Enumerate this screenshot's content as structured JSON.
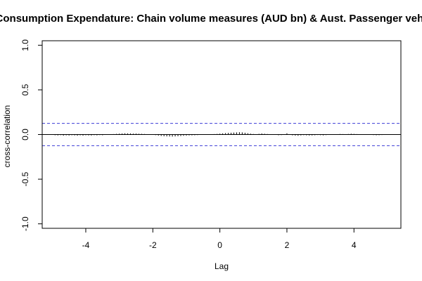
{
  "chart_data": {
    "type": "bar",
    "title": "l Consumption Expendature: Chain volume measures (AUD bn) & Aust. Passenger vehic",
    "xlabel": "Lag",
    "ylabel": "cross-correlation",
    "xlim": [
      -5.3,
      5.4
    ],
    "ylim": [
      -1.05,
      1.05
    ],
    "x_ticks": [
      -4,
      -2,
      0,
      2,
      4
    ],
    "x_tick_labels": [
      "-4",
      "-2",
      "0",
      "2",
      "4"
    ],
    "y_ticks": [
      -1.0,
      -0.5,
      0.0,
      0.5,
      1.0
    ],
    "y_tick_labels": [
      "-1.0",
      "-0.5",
      "0.0",
      "0.5",
      "1.0"
    ],
    "confidence_bounds": [
      0.125,
      -0.125
    ],
    "grid": false,
    "colors": {
      "bars": "#000000",
      "bounds": "#3b3bd6",
      "zero_line": "#000000"
    },
    "lag_start": -4.9167,
    "lag_step": 0.08333,
    "values": [
      -0.008,
      -0.01,
      -0.007,
      -0.012,
      -0.009,
      -0.011,
      -0.008,
      -0.01,
      -0.013,
      -0.009,
      -0.012,
      -0.008,
      -0.01,
      -0.011,
      -0.007,
      -0.009,
      -0.006,
      -0.008,
      -0.004,
      -0.002,
      0.002,
      0.005,
      0.008,
      0.01,
      0.012,
      0.014,
      0.013,
      0.012,
      0.01,
      0.011,
      0.009,
      0.008,
      0.006,
      0.004,
      0.002,
      -0.003,
      -0.007,
      -0.012,
      -0.016,
      -0.019,
      -0.021,
      -0.022,
      -0.023,
      -0.021,
      -0.019,
      -0.017,
      -0.014,
      -0.012,
      -0.01,
      -0.009,
      -0.008,
      -0.006,
      -0.004,
      -0.003,
      -0.001,
      0.001,
      0.003,
      0.005,
      0.007,
      0.01,
      0.013,
      0.016,
      0.018,
      0.02,
      0.022,
      0.024,
      0.026,
      0.024,
      0.02,
      0.015,
      0.01,
      0.006,
      0.004,
      0.008,
      0.012,
      0.009,
      0.006,
      0.003,
      0.002,
      -0.004,
      -0.008,
      -0.006,
      0.004,
      0.014,
      -0.004,
      -0.009,
      -0.012,
      -0.014,
      -0.01,
      -0.007,
      -0.009,
      -0.011,
      -0.01,
      -0.008,
      -0.005,
      -0.007,
      -0.009,
      -0.006,
      -0.004,
      -0.002,
      0.002,
      0.004,
      0.006,
      0.005,
      0.004,
      0.006,
      0.009,
      0.007,
      0.005,
      0.004,
      0.003,
      0.001,
      -0.002,
      -0.004,
      -0.006,
      -0.008,
      -0.007,
      -0.005
    ]
  }
}
